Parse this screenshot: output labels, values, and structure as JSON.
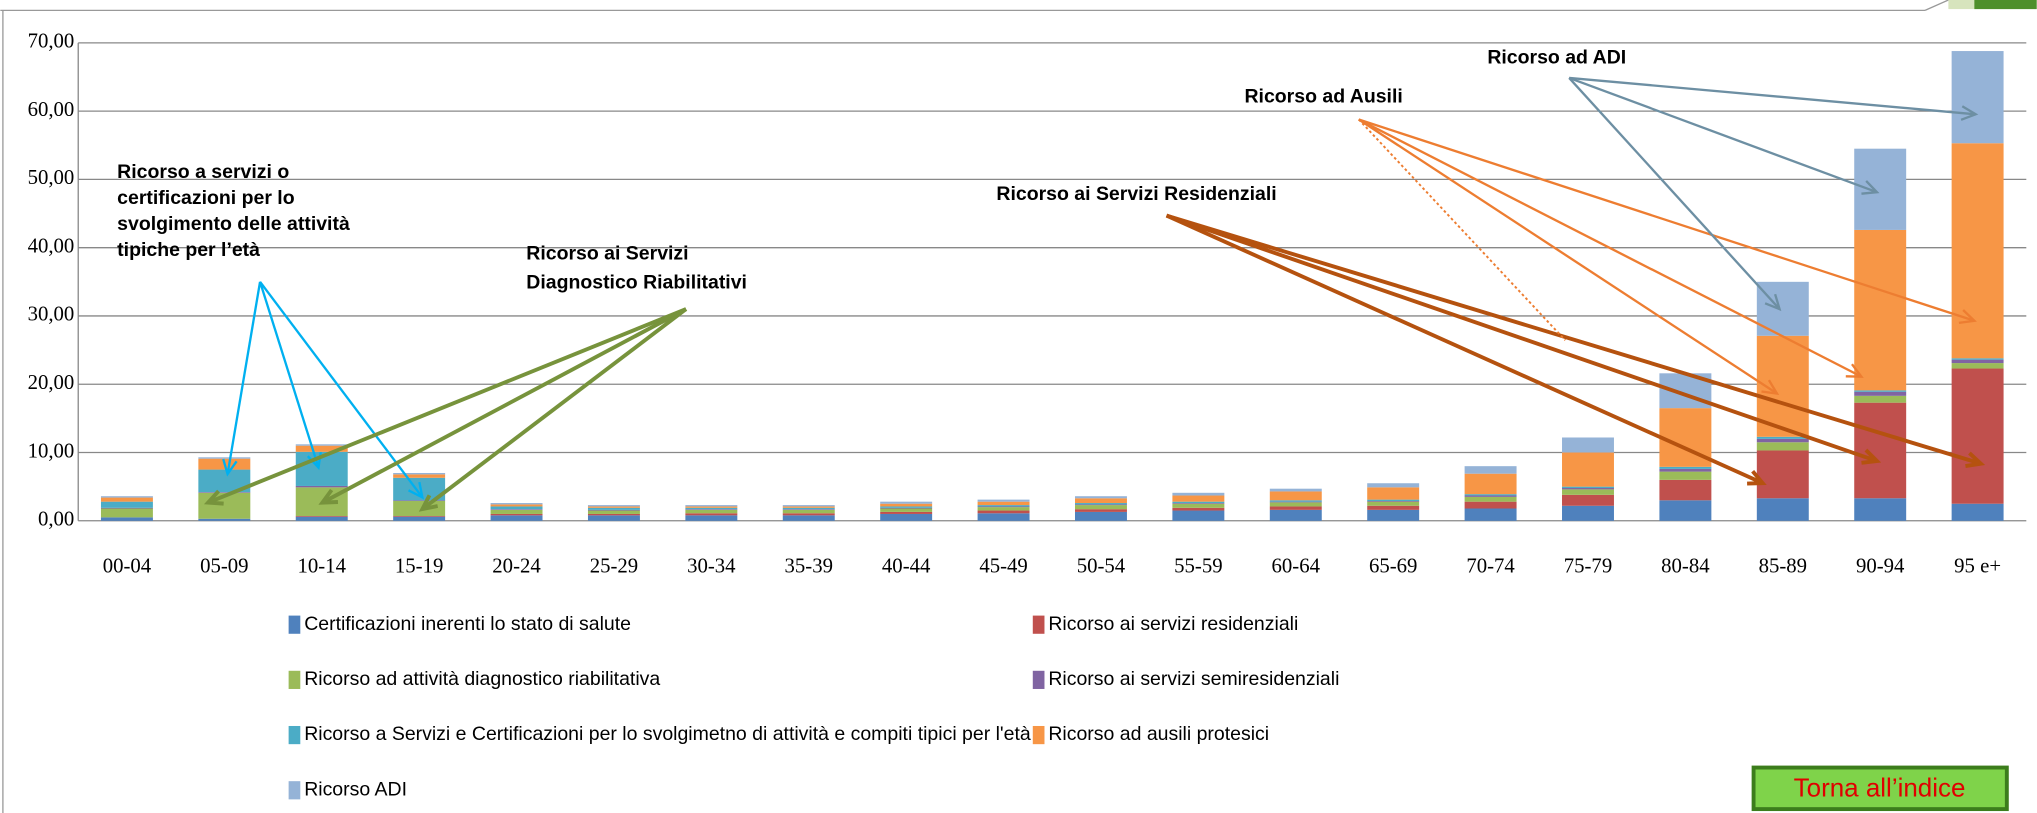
{
  "chart_data": {
    "type": "stacked_bar",
    "categories": [
      "00-04",
      "05-09",
      "10-14",
      "15-19",
      "20-24",
      "25-29",
      "30-34",
      "35-39",
      "40-44",
      "45-49",
      "50-54",
      "55-59",
      "60-64",
      "65-69",
      "70-74",
      "75-79",
      "80-84",
      "85-89",
      "90-94",
      "95 e+"
    ],
    "ylim": [
      0,
      70
    ],
    "yticks": [
      {
        "value": 0,
        "label": "0,00"
      },
      {
        "value": 10,
        "label": "10,00"
      },
      {
        "value": 20,
        "label": "20,00"
      },
      {
        "value": 30,
        "label": "30,00"
      },
      {
        "value": 40,
        "label": "40,00"
      },
      {
        "value": 50,
        "label": "50,00"
      },
      {
        "value": 60,
        "label": "60,00"
      },
      {
        "value": 70,
        "label": "70,00"
      }
    ],
    "grid": true,
    "series": [
      {
        "name": "Certificazioni inerenti lo stato di salute",
        "color": "#4f81bd",
        "values": [
          0.5,
          0.3,
          0.6,
          0.6,
          0.8,
          0.8,
          0.8,
          0.8,
          1.0,
          1.1,
          1.3,
          1.5,
          1.6,
          1.6,
          1.8,
          2.2,
          3.0,
          3.3,
          3.3,
          2.5
        ]
      },
      {
        "name": "Ricorso ai servizi residenziali",
        "color": "#c0504d",
        "values": [
          0,
          0,
          0.1,
          0.1,
          0.2,
          0.2,
          0.3,
          0.3,
          0.3,
          0.4,
          0.4,
          0.4,
          0.5,
          0.6,
          1.0,
          1.6,
          3.0,
          7.0,
          14.0,
          19.8
        ]
      },
      {
        "name": "Ricorso ad attività diagnostico riabilitativa",
        "color": "#9bbb59",
        "values": [
          1.3,
          3.8,
          4.2,
          2.2,
          0.6,
          0.5,
          0.5,
          0.5,
          0.5,
          0.5,
          0.6,
          0.6,
          0.6,
          0.6,
          0.7,
          0.8,
          1.2,
          1.2,
          1.0,
          0.8
        ]
      },
      {
        "name": "Ricorso ai servizi semiresidenziali",
        "color": "#8064a2",
        "values": [
          0.1,
          0.1,
          0.2,
          0.1,
          0.1,
          0.1,
          0.1,
          0.1,
          0.1,
          0.1,
          0.1,
          0.1,
          0.1,
          0.1,
          0.2,
          0.2,
          0.4,
          0.5,
          0.6,
          0.5
        ]
      },
      {
        "name": "Ricorso a Servizi e Certificazioni per lo svolgimetno di attività e compiti tipici per l'età",
        "color": "#4bacc6",
        "values": [
          0.9,
          3.3,
          5.0,
          3.3,
          0.4,
          0.3,
          0.2,
          0.2,
          0.2,
          0.2,
          0.2,
          0.2,
          0.2,
          0.2,
          0.2,
          0.2,
          0.3,
          0.3,
          0.2,
          0.2
        ]
      },
      {
        "name": "Ricorso ad ausili protesici",
        "color": "#f79646",
        "values": [
          0.6,
          1.6,
          0.9,
          0.5,
          0.3,
          0.2,
          0.2,
          0.2,
          0.4,
          0.5,
          0.7,
          0.9,
          1.3,
          1.8,
          3.0,
          5.0,
          8.6,
          14.8,
          23.5,
          31.5
        ]
      },
      {
        "name": "Ricorso ADI",
        "color": "#95b3d7",
        "values": [
          0.2,
          0.2,
          0.2,
          0.2,
          0.2,
          0.2,
          0.2,
          0.2,
          0.3,
          0.3,
          0.3,
          0.4,
          0.4,
          0.6,
          1.1,
          2.2,
          5.1,
          7.9,
          11.9,
          13.5
        ]
      }
    ],
    "annotations": [
      {
        "lines": [
          "Ricorso a servizi o",
          "certificazioni per lo",
          "svolgimento delle attività",
          "tipiche per l’età"
        ]
      },
      {
        "lines": [
          "Ricorso ai Servizi",
          "Diagnostico Riabilitativi"
        ]
      },
      {
        "lines": [
          "Ricorso ai Servizi Residenziali"
        ]
      },
      {
        "lines": [
          "Ricorso ad Ausili"
        ]
      },
      {
        "lines": [
          "Ricorso ad ADI"
        ]
      }
    ],
    "button": "Torna all’indice"
  }
}
